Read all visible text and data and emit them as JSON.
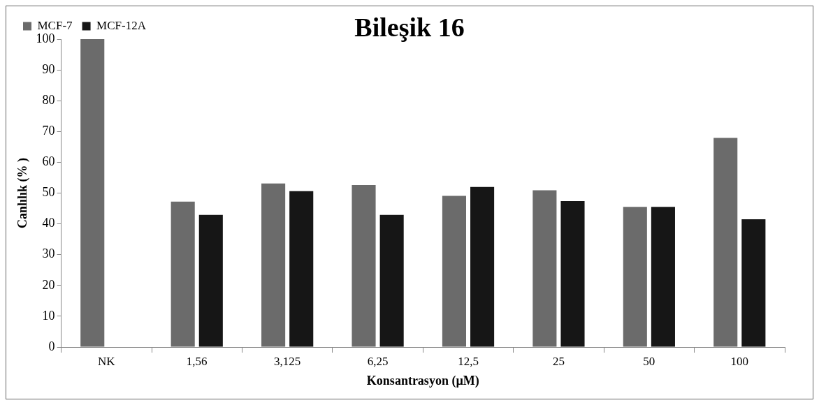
{
  "chart_data": {
    "type": "bar",
    "title": "Bileşik 16",
    "xlabel": "Konsantrasyon (µM)",
    "ylabel": "Canlılık (% )",
    "categories": [
      "NK",
      "1,56",
      "3,125",
      "6,25",
      "12,5",
      "25",
      "50",
      "100"
    ],
    "series": [
      {
        "name": "MCF-7",
        "color": "#6b6b6b",
        "values": [
          100,
          47.2,
          53.1,
          52.6,
          49.1,
          50.9,
          45.5,
          67.9
        ]
      },
      {
        "name": "MCF-12A",
        "color": "#161616",
        "values": [
          null,
          42.9,
          50.6,
          42.9,
          52,
          47.4,
          45.5,
          41.5
        ]
      }
    ],
    "ylim": [
      0,
      100
    ],
    "yticks": [
      0,
      10,
      20,
      30,
      40,
      50,
      60,
      70,
      80,
      90,
      100
    ],
    "grid": false,
    "legend": "top left"
  }
}
